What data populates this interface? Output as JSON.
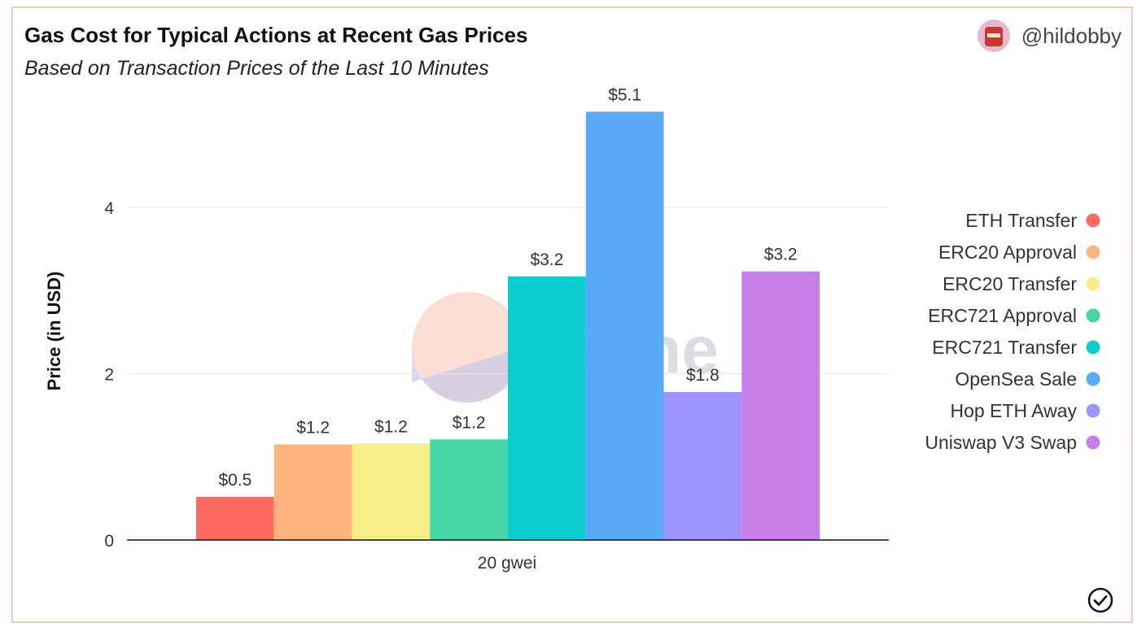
{
  "header": {
    "title": "Gas Cost for Typical Actions at Recent Gas Prices",
    "subtitle": "Based on Transaction Prices of the Last 10 Minutes",
    "author_handle": "@hildobby",
    "avatar_icon": "pixel-avatar-icon",
    "status_icon": "check-circle-icon"
  },
  "watermark": {
    "text": "Dune"
  },
  "chart_data": {
    "type": "bar",
    "categories": [
      "20 gwei"
    ],
    "xlabel": "20 gwei",
    "ylabel": "Price (in USD)",
    "ylim": [
      0,
      5.3
    ],
    "yticks": [
      0,
      2,
      4
    ],
    "grid": true,
    "legend_position": "right",
    "series": [
      {
        "name": "ETH Transfer",
        "values": [
          0.52
        ],
        "label": "$0.5",
        "color": "#ff6b61"
      },
      {
        "name": "ERC20 Approval",
        "values": [
          1.15
        ],
        "label": "$1.2",
        "color": "#ffb37e"
      },
      {
        "name": "ERC20 Transfer",
        "values": [
          1.16
        ],
        "label": "$1.2",
        "color": "#f6ef89"
      },
      {
        "name": "ERC721 Approval",
        "values": [
          1.21
        ],
        "label": "$1.2",
        "color": "#45d6a3"
      },
      {
        "name": "ERC721 Transfer",
        "values": [
          3.17
        ],
        "label": "$3.2",
        "color": "#0bced1"
      },
      {
        "name": "OpenSea Sale",
        "values": [
          5.15
        ],
        "label": "$5.1",
        "color": "#5aaaf7"
      },
      {
        "name": "Hop ETH Away",
        "values": [
          1.78
        ],
        "label": "$1.8",
        "color": "#9d94ff"
      },
      {
        "name": "Uniswap V3 Swap",
        "values": [
          3.23
        ],
        "label": "$3.2",
        "color": "#c87ee8"
      }
    ]
  }
}
